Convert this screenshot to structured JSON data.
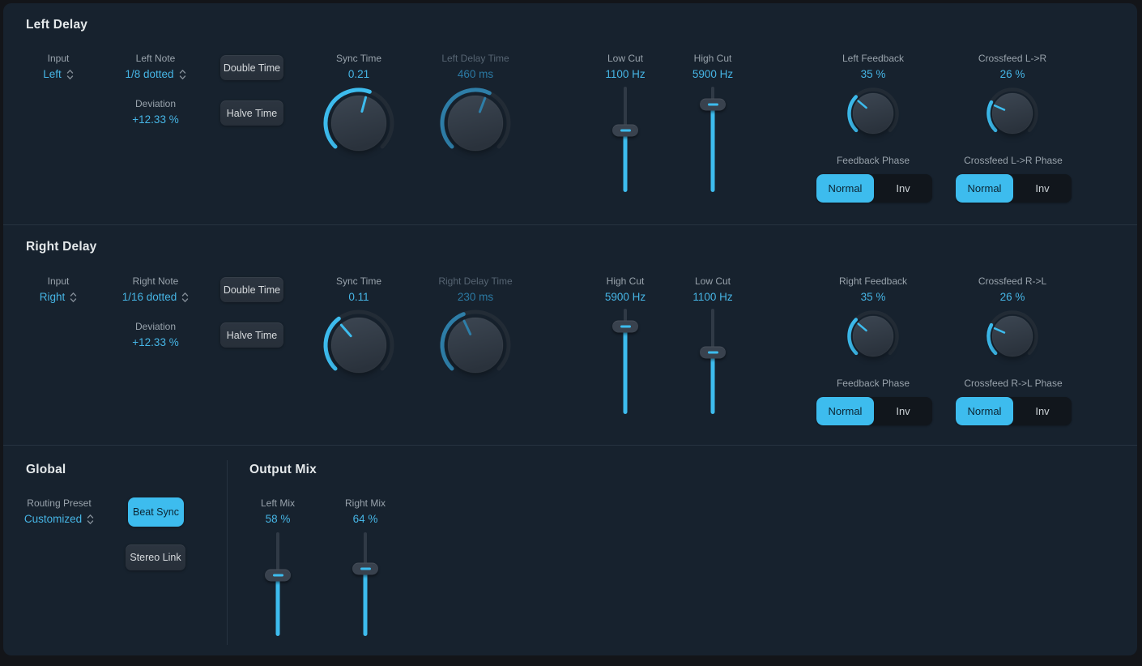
{
  "theme": {
    "accent": "#3dbcee",
    "accent_dim": "#2e7ea8",
    "accent_text": "#46b5e5"
  },
  "left_delay": {
    "title": "Left Delay",
    "input": {
      "label": "Input",
      "value": "Left"
    },
    "note": {
      "label": "Left Note",
      "value": "1/8 dotted"
    },
    "deviation": {
      "label": "Deviation",
      "value": "+12.33 %"
    },
    "double_time_label": "Double Time",
    "halve_time_label": "Halve Time",
    "sync_time": {
      "label": "Sync Time",
      "value": "0.21",
      "angle": 15,
      "disabled": false
    },
    "delay_time": {
      "label": "Left Delay Time",
      "value": "460 ms",
      "angle": 21,
      "disabled": true
    },
    "cut_front": {
      "label": "Low Cut",
      "value": "1100 Hz",
      "thumb_percent": 41.5
    },
    "cut_back": {
      "label": "High Cut",
      "value": "5900 Hz",
      "thumb_percent": 17
    },
    "feedback": {
      "label": "Left Feedback",
      "value": "35 %",
      "angle": -50,
      "disabled": false
    },
    "crossfeed": {
      "label": "Crossfeed L->R",
      "value": "26 %",
      "angle": -66,
      "disabled": false
    },
    "feedback_phase": {
      "label": "Feedback Phase",
      "options": [
        "Normal",
        "Inv"
      ],
      "selected": "Normal"
    },
    "crossfeed_phase": {
      "label": "Crossfeed L->R Phase",
      "options": [
        "Normal",
        "Inv"
      ],
      "selected": "Normal"
    }
  },
  "right_delay": {
    "title": "Right Delay",
    "input": {
      "label": "Input",
      "value": "Right"
    },
    "note": {
      "label": "Right Note",
      "value": "1/16 dotted"
    },
    "deviation": {
      "label": "Deviation",
      "value": "+12.33 %"
    },
    "double_time_label": "Double Time",
    "halve_time_label": "Halve Time",
    "sync_time": {
      "label": "Sync Time",
      "value": "0.11",
      "angle": -41,
      "disabled": false
    },
    "delay_time": {
      "label": "Right Delay Time",
      "value": "230 ms",
      "angle": -25,
      "disabled": true
    },
    "cut_front": {
      "label": "High Cut",
      "value": "5900 Hz",
      "thumb_percent": 17
    },
    "cut_back": {
      "label": "Low Cut",
      "value": "1100 Hz",
      "thumb_percent": 41.5
    },
    "feedback": {
      "label": "Right Feedback",
      "value": "35 %",
      "angle": -50,
      "disabled": false
    },
    "crossfeed": {
      "label": "Crossfeed R->L",
      "value": "26 %",
      "angle": -66,
      "disabled": false
    },
    "feedback_phase": {
      "label": "Feedback Phase",
      "options": [
        "Normal",
        "Inv"
      ],
      "selected": "Normal"
    },
    "crossfeed_phase": {
      "label": "Crossfeed R->L Phase",
      "options": [
        "Normal",
        "Inv"
      ],
      "selected": "Normal"
    }
  },
  "global": {
    "title": "Global",
    "routing_preset": {
      "label": "Routing Preset",
      "value": "Customized"
    },
    "beat_sync_label": "Beat Sync",
    "stereo_link_label": "Stereo Link",
    "beat_sync_active": true,
    "stereo_link_active": false
  },
  "output_mix": {
    "title": "Output Mix",
    "left_mix": {
      "label": "Left Mix",
      "value": "58 %",
      "thumb_percent": 41.4
    },
    "right_mix": {
      "label": "Right Mix",
      "value": "64 %",
      "thumb_percent": 35.2
    }
  }
}
